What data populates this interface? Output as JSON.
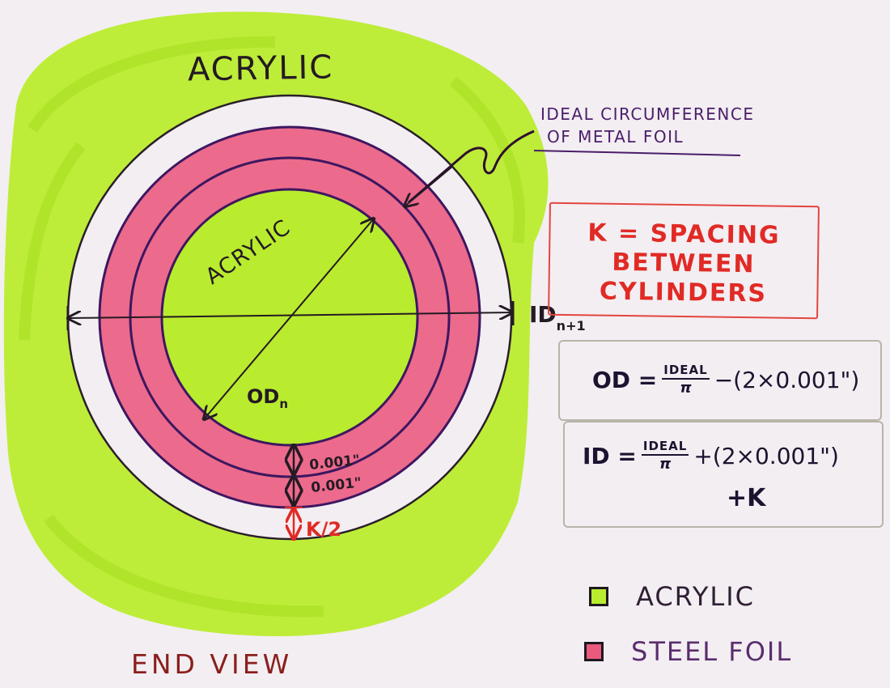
{
  "title_top": "ACRYLIC",
  "inner_label": "ACRYLIC",
  "foil_callout": [
    "IDEAL CIRCUMFERENCE",
    "OF METAL FOIL"
  ],
  "dimension_labels": {
    "outer_id": "ID",
    "outer_id_sub": "n+1",
    "inner_od": "OD",
    "inner_od_sub": "n",
    "foil_thickness_1": "0.001\"",
    "foil_thickness_2": "0.001\"",
    "half_spacing": "K/2"
  },
  "definition_box": [
    "K = SPACING",
    "BETWEEN",
    "CYLINDERS"
  ],
  "formulas": {
    "od": {
      "lhs": "OD =",
      "num": "IDEAL",
      "den": "π",
      "rest": "−(2×0.001\")"
    },
    "id": {
      "lhs": "ID =",
      "num": "IDEAL",
      "den": "π",
      "rest": "+(2×0.001\")",
      "line2": "+K"
    }
  },
  "legend": [
    {
      "label": "ACRYLIC",
      "color": "#b9ec2e"
    },
    {
      "label": "STEEL FOIL",
      "color": "#ea5a7d"
    }
  ],
  "caption": "END VIEW",
  "colors": {
    "acrylic": "#b9ec2e",
    "acrylic_dark": "#a6de22",
    "foil": "#ec6a8c",
    "foil_line": "#3d1760",
    "outline": "#2a1f2a",
    "red_text": "#e12a25",
    "callout_text": "#4a1d6a",
    "caption": "#8a1f1d"
  }
}
